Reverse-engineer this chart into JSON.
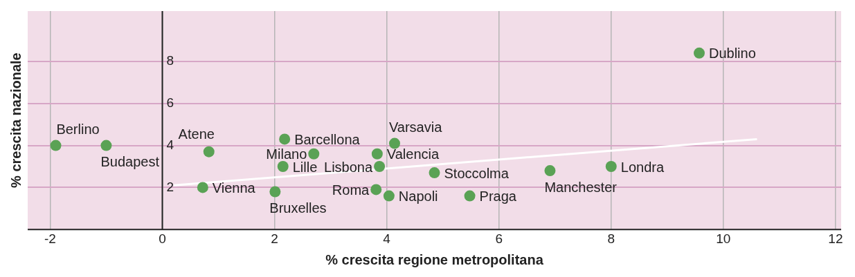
{
  "chart_data": {
    "type": "scatter",
    "xlabel": "% crescita regione metropolitana",
    "ylabel": "% crescita nazionale",
    "xlim": [
      -2.4,
      12.1
    ],
    "ylim": [
      0,
      10.4
    ],
    "xticks": [
      -2,
      0,
      2,
      4,
      6,
      8,
      10,
      12
    ],
    "yticks": [
      2,
      4,
      6,
      8
    ],
    "grid": true,
    "legend": false,
    "marker": "circle",
    "series": [
      {
        "name": "Dublino",
        "color": "#5aa255",
        "x": [
          9.57
        ],
        "values": [
          8.4
        ]
      },
      {
        "name": "Berlino",
        "color": "#5aa255",
        "x": [
          -1.9
        ],
        "values": [
          4.0
        ]
      },
      {
        "name": "Budapest",
        "color": "#5aa255",
        "x": [
          -1.0
        ],
        "values": [
          4.0
        ]
      },
      {
        "name": "Atene",
        "color": "#5aa255",
        "x": [
          0.83
        ],
        "values": [
          3.7
        ]
      },
      {
        "name": "Vienna",
        "color": "#5aa255",
        "x": [
          0.72
        ],
        "values": [
          2.0
        ]
      },
      {
        "name": "Barcellona",
        "color": "#5aa255",
        "x": [
          2.18
        ],
        "values": [
          4.3
        ]
      },
      {
        "name": "Milano",
        "color": "#5aa255",
        "x": [
          2.7
        ],
        "values": [
          3.6
        ]
      },
      {
        "name": "Lille",
        "color": "#5aa255",
        "x": [
          2.15
        ],
        "values": [
          3.0
        ]
      },
      {
        "name": "Bruxelles",
        "color": "#5aa255",
        "x": [
          2.01
        ],
        "values": [
          1.8
        ]
      },
      {
        "name": "Varsavia",
        "color": "#5aa255",
        "x": [
          4.14
        ],
        "values": [
          4.1
        ]
      },
      {
        "name": "Valencia",
        "color": "#5aa255",
        "x": [
          3.83
        ],
        "values": [
          3.6
        ]
      },
      {
        "name": "Lisbona",
        "color": "#5aa255",
        "x": [
          3.87
        ],
        "values": [
          3.0
        ]
      },
      {
        "name": "Roma",
        "color": "#5aa255",
        "x": [
          3.81
        ],
        "values": [
          1.9
        ]
      },
      {
        "name": "Napoli",
        "color": "#5aa255",
        "x": [
          4.04
        ],
        "values": [
          1.6
        ]
      },
      {
        "name": "Stoccolma",
        "color": "#5aa255",
        "x": [
          4.85
        ],
        "values": [
          2.7
        ]
      },
      {
        "name": "Praga",
        "color": "#5aa255",
        "x": [
          5.48
        ],
        "values": [
          1.6
        ]
      },
      {
        "name": "Manchester",
        "color": "#5aa255",
        "x": [
          6.91
        ],
        "values": [
          2.8
        ]
      },
      {
        "name": "Londra",
        "color": "#5aa255",
        "x": [
          8.0
        ],
        "values": [
          3.0
        ]
      },
      {
        "type": "line",
        "color": "#ffffff",
        "x": [
          0.2,
          10.6
        ],
        "values": [
          2.1,
          4.3
        ],
        "marker": "none"
      }
    ]
  }
}
